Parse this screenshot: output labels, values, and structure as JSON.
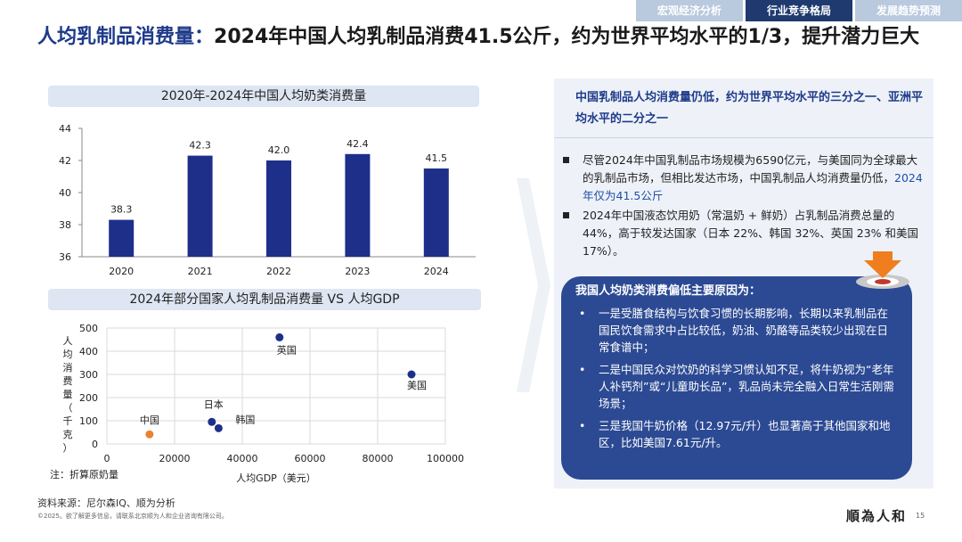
{
  "nav": {
    "tabs": [
      "宏观经济分析",
      "行业竞争格局",
      "发展趋势预测"
    ],
    "active_index": 1
  },
  "title": {
    "highlight": "人均乳制品消费量：",
    "text": "2024年中国人均乳制品消费41.5公斤，约为世界平均水平的1/3，提升潜力巨大"
  },
  "chart_data": [
    {
      "type": "bar",
      "title": "2020年-2024年中国人均奶类消费量",
      "categories": [
        "2020",
        "2021",
        "2022",
        "2023",
        "2024"
      ],
      "values": [
        38.3,
        42.3,
        42.0,
        42.4,
        41.5
      ],
      "value_labels": [
        "38.3",
        "42.3",
        "42.0",
        "42.4",
        "41.5"
      ],
      "ylim": [
        36,
        44
      ],
      "yticks": [
        "36",
        "38",
        "40",
        "42",
        "44"
      ],
      "color": "#1e2f8a",
      "grid": false
    },
    {
      "type": "scatter",
      "title": "2024年部分国家人均乳制品消费量 VS 人均GDP",
      "xlabel": "人均GDP（美元）",
      "ylabel": "人均消费量（千克）",
      "xlim": [
        0,
        100000
      ],
      "ylim": [
        0,
        500
      ],
      "xticks": [
        "0",
        "20000",
        "40000",
        "60000",
        "80000",
        "100000"
      ],
      "yticks": [
        "0",
        "100",
        "200",
        "300",
        "400",
        "500"
      ],
      "points": [
        {
          "label": "中国",
          "x": 12600,
          "y": 41.5,
          "color": "#e8842f"
        },
        {
          "label": "日本",
          "x": 31000,
          "y": 95,
          "color": "#1e2f8a"
        },
        {
          "label": "韩国",
          "x": 33000,
          "y": 68,
          "color": "#1e2f8a"
        },
        {
          "label": "英国",
          "x": 51000,
          "y": 460,
          "color": "#1e2f8a"
        },
        {
          "label": "美国",
          "x": 90000,
          "y": 300,
          "color": "#1e2f8a"
        }
      ],
      "grid": true
    }
  ],
  "note": "注：折算原奶量",
  "source": "资料来源：尼尔森IQ、顺为分析",
  "copyright": "©2025。欲了解更多信息，请联系北京顺为人和企业咨询有限公司。",
  "logo": "順為人和",
  "page_number": "15",
  "right": {
    "heading": "中国乳制品人均消费量仍低，约为世界平均水平的三分之一、亚洲平均水平的二分之一",
    "bullet1_main": "尽管2024年中国乳制品市场规模为6590亿元，与美国同为全球最大的乳制品市场，但相比发达市场，中国乳制品人均消费量仍低，",
    "bullet1_highlight": "2024年仅为41.5公斤",
    "bullet2": "2024年中国液态饮用奶（常温奶 + 鲜奶）占乳制品消费总量的 44%，高于较发达国家（日本 22%、韩国 32%、英国 23% 和美国 17%）。",
    "reasons_title": "我国人均奶类消费偏低主要原因为：",
    "reasons": [
      "一是受膳食结构与饮食习惯的长期影响，长期以来乳制品在国民饮食需求中占比较低，奶油、奶酪等品类较少出现在日常食谱中；",
      "二是中国民众对饮奶的科学习惯认知不足，将牛奶视为“老年人补钙剂”或“儿童助长品”，乳品尚未完全融入日常生活刚需场景；",
      "三是我国牛奶价格（12.97元/升）也显著高于其他国家和地区，比如美国7.61元/升。"
    ],
    "bullet_dot": "•"
  }
}
